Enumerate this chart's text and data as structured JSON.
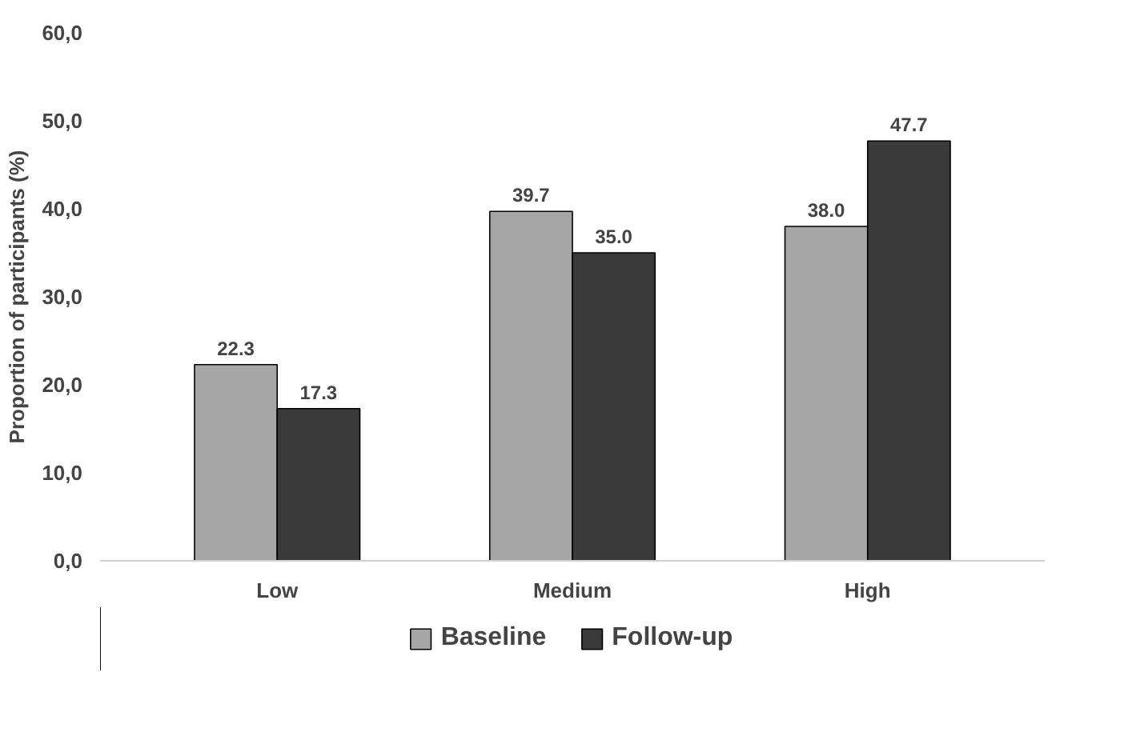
{
  "chart_data": {
    "type": "bar",
    "ylabel": "Proportion of participants (%)",
    "categories": [
      "Low",
      "Medium",
      "High"
    ],
    "series": [
      {
        "name": "Baseline",
        "color": "#a6a6a6",
        "values": [
          22.3,
          39.7,
          38.0
        ],
        "value_labels": [
          "22.3",
          "39.7",
          "38.0"
        ]
      },
      {
        "name": "Follow-up",
        "color": "#3a3a3a",
        "values": [
          17.3,
          35.0,
          47.7
        ],
        "value_labels": [
          "17.3",
          "35.0",
          "47.7"
        ]
      }
    ],
    "ylim": [
      0,
      60
    ],
    "yticks": [
      {
        "value": 0,
        "label": "0,0"
      },
      {
        "value": 10,
        "label": "10,0"
      },
      {
        "value": 20,
        "label": "20,0"
      },
      {
        "value": 30,
        "label": "30,0"
      },
      {
        "value": 40,
        "label": "40,0"
      },
      {
        "value": 50,
        "label": "50,0"
      },
      {
        "value": 60,
        "label": "60,0"
      }
    ],
    "grid": false,
    "legend": "bottom"
  }
}
